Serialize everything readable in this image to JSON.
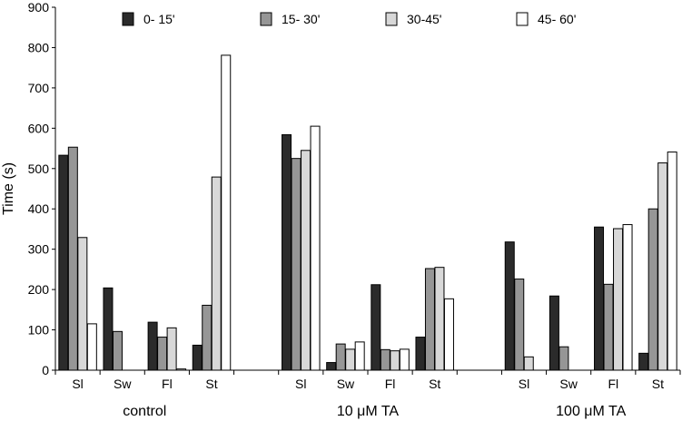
{
  "chart_data": {
    "type": "bar",
    "ylabel": "Time (s)",
    "ylim": [
      0,
      900
    ],
    "yticks": [
      "0",
      "100",
      "200",
      "300",
      "400",
      "500",
      "600",
      "700",
      "800",
      "900"
    ],
    "legend_position": "top",
    "groups": [
      {
        "label": "control",
        "categories": [
          "Sl",
          "Sw",
          "Fl",
          "St"
        ]
      },
      {
        "label": "",
        "categories": [
          ""
        ]
      },
      {
        "label": "10 μM TA",
        "categories": [
          "Sl",
          "Sw",
          "Fl",
          "St"
        ]
      },
      {
        "label": "",
        "categories": [
          ""
        ]
      },
      {
        "label": "100 μM TA",
        "categories": [
          "Sl",
          "Sw",
          "Fl",
          "St"
        ]
      }
    ],
    "series": [
      {
        "name": "0- 15'",
        "color": "#2b2b2b",
        "values": [
          533,
          204,
          119,
          62,
          null,
          584,
          19,
          212,
          82,
          null,
          318,
          184,
          355,
          42
        ]
      },
      {
        "name": "15- 30'",
        "color": "#969696",
        "values": [
          553,
          96,
          82,
          161,
          null,
          525,
          65,
          51,
          252,
          null,
          226,
          58,
          213,
          400
        ]
      },
      {
        "name": "30-45'",
        "color": "#d8d8d8",
        "values": [
          329,
          0,
          105,
          479,
          null,
          545,
          52,
          48,
          255,
          null,
          33,
          0,
          351,
          514
        ]
      },
      {
        "name": "45- 60'",
        "color": "#ffffff",
        "values": [
          115,
          0,
          3,
          781,
          null,
          605,
          70,
          52,
          177,
          null,
          0,
          0,
          361,
          541
        ]
      }
    ]
  }
}
